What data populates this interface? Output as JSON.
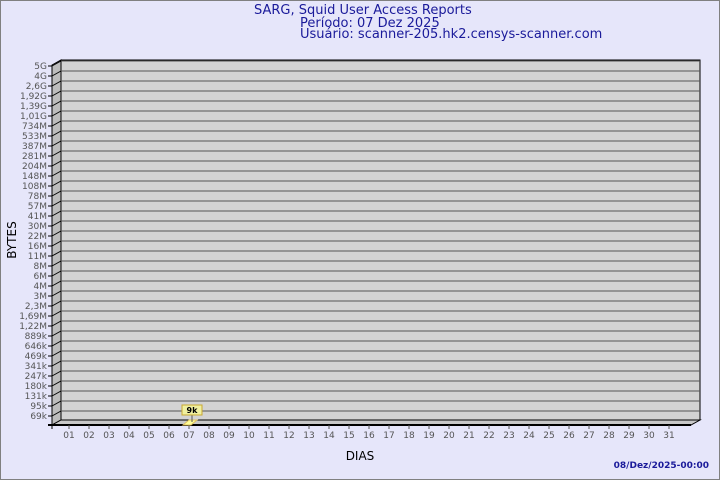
{
  "header": {
    "title": "SARG, Squid User Access Reports",
    "period": "Período: 07 Dez 2025",
    "user": "Usuário: scanner-205.hk2.censys-scanner.com"
  },
  "timestamp": "08/Dez/2025-00:00",
  "chart_data": {
    "type": "bar",
    "title": "SARG, Squid User Access Reports",
    "xlabel": "DIAS",
    "ylabel": "BYTES",
    "y_scale": "log",
    "grid": true,
    "y_ticks": [
      "5G",
      "4G",
      "2,6G",
      "1,92G",
      "1,39G",
      "1,01G",
      "734M",
      "533M",
      "387M",
      "281M",
      "204M",
      "148M",
      "108M",
      "78M",
      "57M",
      "41M",
      "30M",
      "22M",
      "16M",
      "11M",
      "8M",
      "6M",
      "4M",
      "3M",
      "2,3M",
      "1,69M",
      "1,22M",
      "889k",
      "646k",
      "469k",
      "341k",
      "247k",
      "180k",
      "131k",
      "95k",
      "69k"
    ],
    "categories": [
      "01",
      "02",
      "03",
      "04",
      "05",
      "06",
      "07",
      "08",
      "09",
      "10",
      "11",
      "12",
      "13",
      "14",
      "15",
      "16",
      "17",
      "18",
      "19",
      "20",
      "21",
      "22",
      "23",
      "24",
      "25",
      "26",
      "27",
      "28",
      "29",
      "30",
      "31"
    ],
    "bars": [
      {
        "day": "07",
        "value": 9000,
        "label": "9k"
      }
    ],
    "colors": {
      "wall": "#d3d3d3",
      "bar": "#ffff99",
      "label_bg": "#f0f0a0",
      "text": "#1a1a9a"
    }
  }
}
